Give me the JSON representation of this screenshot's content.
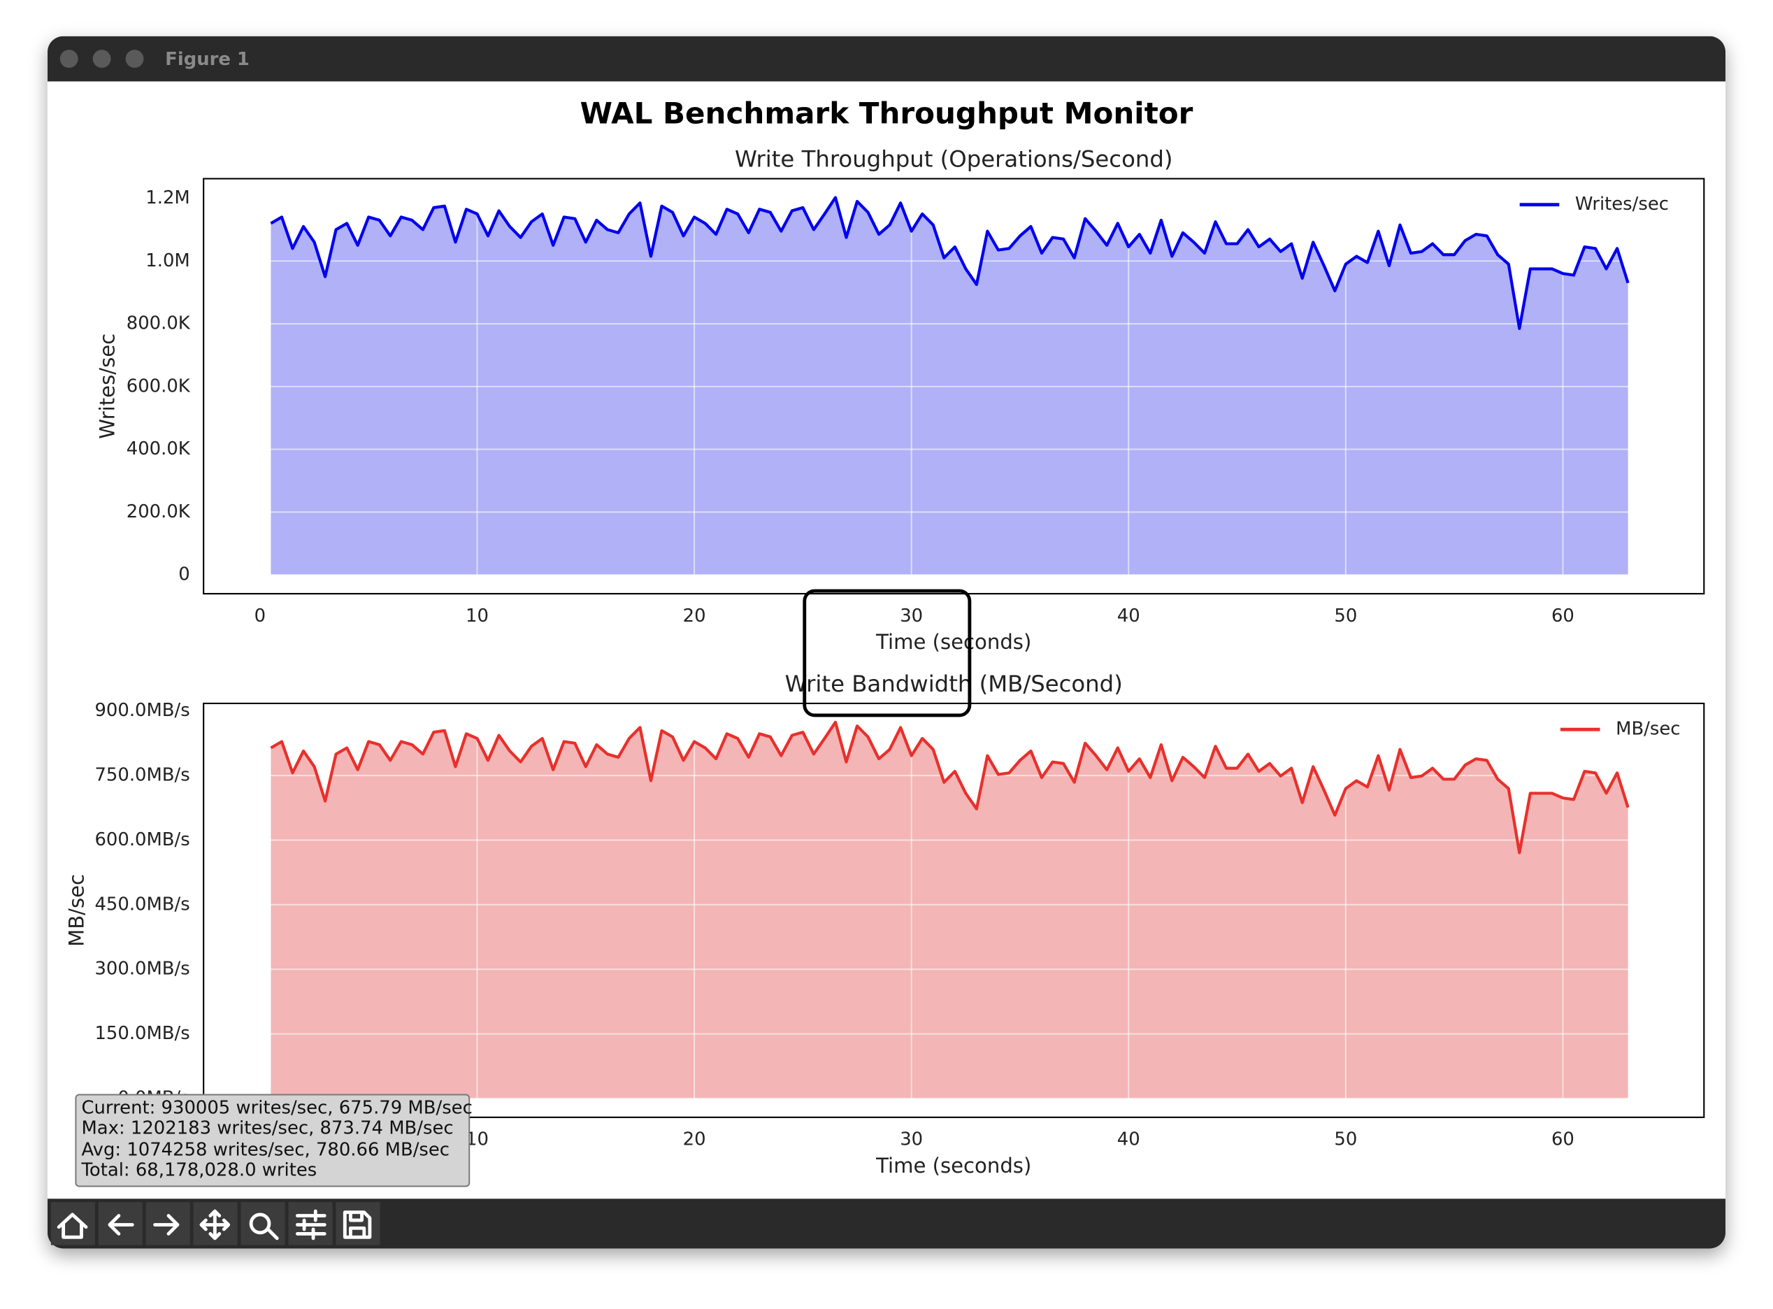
{
  "window": {
    "title": "Figure 1"
  },
  "figure_title": "WAL Benchmark Throughput Monitor",
  "info_box": [
    "Current: 930005 writes/sec, 675.79 MB/sec",
    "Max: 1202183 writes/sec, 873.74 MB/sec",
    "Avg: 1074258 writes/sec, 780.66 MB/sec",
    "Total: 68,178,028.0 writes"
  ],
  "chart_data": [
    {
      "type": "line",
      "fill": true,
      "title": "Write Throughput (Operations/Second)",
      "xlabel": "Time (seconds)",
      "ylabel": "Writes/sec",
      "grid": true,
      "legend": "upper right",
      "xlim": [
        -2.6,
        66.5
      ],
      "xticks": [
        0,
        10,
        20,
        30,
        40,
        50,
        60
      ],
      "ylim": [
        -60109,
        1262292
      ],
      "yticks": [
        0,
        {
          "value": 200000,
          "label": "200.0K"
        },
        {
          "value": 400000,
          "label": "400.0K"
        },
        {
          "value": 600000,
          "label": "600.0K"
        },
        {
          "value": 800000,
          "label": "800.0K"
        },
        {
          "value": 1000000,
          "label": "1.0M"
        },
        {
          "value": 1200000,
          "label": "1.2M"
        }
      ],
      "x": [
        0.5,
        1,
        1.5,
        2,
        2.5,
        3,
        3.5,
        4,
        4.5,
        5,
        5.5,
        6,
        6.5,
        7,
        7.5,
        8,
        8.5,
        9,
        9.5,
        10,
        10.5,
        11,
        11.5,
        12,
        12.5,
        13,
        13.5,
        14,
        14.5,
        15,
        15.5,
        16,
        16.5,
        17,
        17.5,
        18,
        18.5,
        19,
        19.5,
        20,
        20.5,
        21,
        21.5,
        22,
        22.5,
        23,
        23.5,
        24,
        24.5,
        25,
        25.5,
        26,
        26.5,
        27,
        27.5,
        28,
        28.5,
        29,
        29.5,
        30,
        30.5,
        31,
        31.5,
        32,
        32.5,
        33,
        33.5,
        34,
        34.5,
        35,
        35.5,
        36,
        36.5,
        37,
        37.5,
        38,
        38.5,
        39,
        39.5,
        40,
        40.5,
        41,
        41.5,
        42,
        42.5,
        43,
        43.5,
        44,
        44.5,
        45,
        45.5,
        46,
        46.5,
        47,
        47.5,
        48,
        48.5,
        49,
        49.5,
        50,
        50.5,
        51,
        51.5,
        52,
        52.5,
        53,
        53.5,
        54,
        54.5,
        55,
        55.5,
        56,
        56.5,
        57,
        57.5,
        58,
        58.5,
        59,
        59.5,
        60,
        60.5,
        61,
        61.5,
        62,
        62.5,
        63
      ],
      "series": [
        {
          "name": "Writes/sec",
          "color": "#0000ee",
          "fill_color": "#b0b1f6",
          "values": [
            1120000,
            1140000,
            1040000,
            1110000,
            1060000,
            950000,
            1100000,
            1120000,
            1050000,
            1140000,
            1130000,
            1080000,
            1140000,
            1130000,
            1100000,
            1170000,
            1175000,
            1060000,
            1165000,
            1150000,
            1080000,
            1160000,
            1110000,
            1075000,
            1125000,
            1150000,
            1050000,
            1140000,
            1135000,
            1060000,
            1130000,
            1100000,
            1090000,
            1150000,
            1185000,
            1015000,
            1175000,
            1155000,
            1080000,
            1140000,
            1120000,
            1085000,
            1165000,
            1150000,
            1090000,
            1165000,
            1155000,
            1095000,
            1160000,
            1170000,
            1100000,
            1150000,
            1202183,
            1075000,
            1190000,
            1155000,
            1085000,
            1115000,
            1185000,
            1095000,
            1150000,
            1115000,
            1010000,
            1045000,
            975000,
            925000,
            1095000,
            1035000,
            1040000,
            1080000,
            1110000,
            1025000,
            1075000,
            1070000,
            1010000,
            1135000,
            1095000,
            1050000,
            1120000,
            1045000,
            1085000,
            1025000,
            1130000,
            1015000,
            1090000,
            1060000,
            1025000,
            1125000,
            1055000,
            1055000,
            1100000,
            1045000,
            1070000,
            1030000,
            1055000,
            945000,
            1060000,
            985000,
            905000,
            990000,
            1015000,
            995000,
            1095000,
            985000,
            1115000,
            1025000,
            1030000,
            1055000,
            1020000,
            1020000,
            1065000,
            1085000,
            1080000,
            1020000,
            990000,
            785000,
            975000,
            975000,
            975000,
            960000,
            955000,
            1045000,
            1040000,
            975000,
            1040000,
            930005
          ]
        }
      ]
    },
    {
      "type": "line",
      "fill": true,
      "title": "Write Bandwidth (MB/Second)",
      "xlabel": "Time (seconds)",
      "ylabel": "MB/sec",
      "grid": true,
      "legend": "upper right",
      "xlim": [
        -2.6,
        66.5
      ],
      "xticks": [
        0,
        10,
        20,
        30,
        40,
        50,
        60
      ],
      "ylim": [
        -43.69,
        917.43
      ],
      "yticks": [
        {
          "value": 0,
          "label": "0.0MB/s"
        },
        {
          "value": 150,
          "label": "150.0MB/s"
        },
        {
          "value": 300,
          "label": "300.0MB/s"
        },
        {
          "value": 450,
          "label": "450.0MB/s"
        },
        {
          "value": 600,
          "label": "600.0MB/s"
        },
        {
          "value": 750,
          "label": "750.0MB/s"
        },
        {
          "value": 900,
          "label": "900.0MB/s"
        }
      ],
      "x": [
        0.5,
        1,
        1.5,
        2,
        2.5,
        3,
        3.5,
        4,
        4.5,
        5,
        5.5,
        6,
        6.5,
        7,
        7.5,
        8,
        8.5,
        9,
        9.5,
        10,
        10.5,
        11,
        11.5,
        12,
        12.5,
        13,
        13.5,
        14,
        14.5,
        15,
        15.5,
        16,
        16.5,
        17,
        17.5,
        18,
        18.5,
        19,
        19.5,
        20,
        20.5,
        21,
        21.5,
        22,
        22.5,
        23,
        23.5,
        24,
        24.5,
        25,
        25.5,
        26,
        26.5,
        27,
        27.5,
        28,
        28.5,
        29,
        29.5,
        30,
        30.5,
        31,
        31.5,
        32,
        32.5,
        33,
        33.5,
        34,
        34.5,
        35,
        35.5,
        36,
        36.5,
        37,
        37.5,
        38,
        38.5,
        39,
        39.5,
        40,
        40.5,
        41,
        41.5,
        42,
        42.5,
        43,
        43.5,
        44,
        44.5,
        45,
        45.5,
        46,
        46.5,
        47,
        47.5,
        48,
        48.5,
        49,
        49.5,
        50,
        50.5,
        51,
        51.5,
        52,
        52.5,
        53,
        53.5,
        54,
        54.5,
        55,
        55.5,
        56,
        56.5,
        57,
        57.5,
        58,
        58.5,
        59,
        59.5,
        60,
        60.5,
        61,
        61.5,
        62,
        62.5,
        63
      ],
      "series": [
        {
          "name": "MB/sec",
          "color": "#e8302c",
          "fill_color": "#f3b5b5",
          "values": [
            814.2,
            828.8,
            756.1,
            807.0,
            770.6,
            690.7,
            799.7,
            814.2,
            763.4,
            828.8,
            821.5,
            785.2,
            828.8,
            821.5,
            799.7,
            850.6,
            854.2,
            770.6,
            847.0,
            836.1,
            785.2,
            843.3,
            807.0,
            781.5,
            817.9,
            836.1,
            763.4,
            828.8,
            825.1,
            770.6,
            821.5,
            799.7,
            792.4,
            836.1,
            861.5,
            737.9,
            854.2,
            839.7,
            785.2,
            828.8,
            814.2,
            788.8,
            847.0,
            836.1,
            792.4,
            847.0,
            839.7,
            796.1,
            843.3,
            850.6,
            799.7,
            836.1,
            873.74,
            781.5,
            865.1,
            839.7,
            788.8,
            810.6,
            861.5,
            796.1,
            836.1,
            810.6,
            734.3,
            759.7,
            708.8,
            672.5,
            796.1,
            752.4,
            756.1,
            785.2,
            807.0,
            745.2,
            781.5,
            777.9,
            734.3,
            825.1,
            796.1,
            763.4,
            814.2,
            759.7,
            788.8,
            745.2,
            821.5,
            737.9,
            792.4,
            770.6,
            745.2,
            817.9,
            767.0,
            767.0,
            799.7,
            759.7,
            777.9,
            748.8,
            767.0,
            687.0,
            770.6,
            716.1,
            657.9,
            719.7,
            737.9,
            723.4,
            796.1,
            716.1,
            810.6,
            745.2,
            748.8,
            767.0,
            741.5,
            741.5,
            774.3,
            788.8,
            785.2,
            741.5,
            719.7,
            570.7,
            708.8,
            708.8,
            708.8,
            697.9,
            694.3,
            759.7,
            756.1,
            708.8,
            756.1,
            675.79
          ]
        }
      ]
    }
  ]
}
